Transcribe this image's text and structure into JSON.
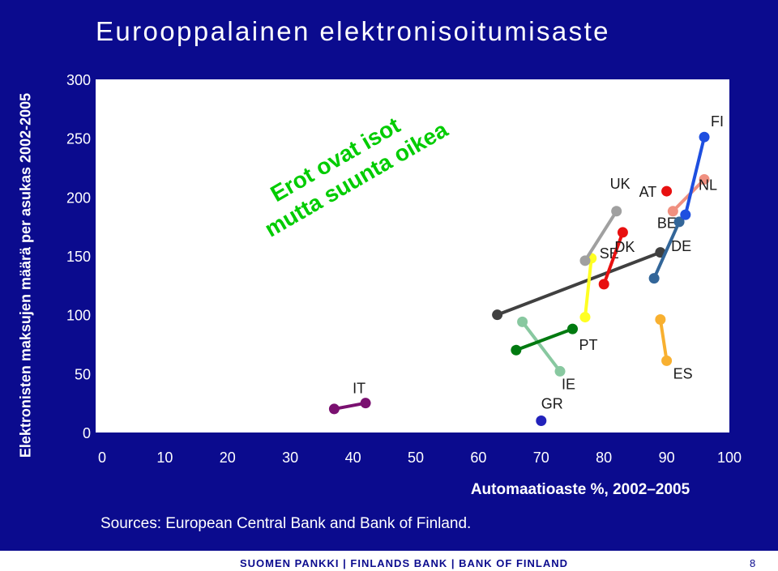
{
  "slide": {
    "footer_bank": "SUOMEN PANKKI | FINLANDS BANK | BANK OF FINLAND",
    "page_number": "8",
    "sources": "Sources: European Central Bank and Bank of Finland."
  },
  "chart_data": {
    "type": "scatter",
    "title": "Eurooppalainen elektronisoitumisaste",
    "xlabel": "Automaatioaste %, 2002–2005",
    "ylabel": "Elektronisten maksujen määrä per asukas 2002-2005",
    "xlim": [
      0,
      100
    ],
    "ylim": [
      0,
      300
    ],
    "x_ticks": [
      "0",
      "10",
      "20",
      "30",
      "40",
      "50",
      "60",
      "70",
      "80",
      "90",
      "100"
    ],
    "y_ticks": [
      "0",
      "50",
      "100",
      "150",
      "200",
      "250",
      "300"
    ],
    "annotation": [
      "Erot ovat isot",
      "mutta suunta oikea"
    ],
    "series": [
      {
        "name": "IT",
        "color": "#7a1070",
        "points": [
          [
            37,
            20
          ],
          [
            42,
            25
          ]
        ]
      },
      {
        "name": "GR",
        "color": "#2222bb",
        "points": [
          [
            70,
            10
          ]
        ]
      },
      {
        "name": "IE",
        "color": "#88c8a0",
        "points": [
          [
            67,
            94
          ],
          [
            73,
            52
          ]
        ]
      },
      {
        "name": "PT",
        "color": "#007a10",
        "points": [
          [
            66,
            70
          ],
          [
            75,
            88
          ]
        ]
      },
      {
        "name": "BE",
        "color": "#404040",
        "points": [
          [
            63,
            100
          ],
          [
            89,
            153
          ]
        ]
      },
      {
        "name": "SE",
        "color": "#ffff22",
        "points": [
          [
            77,
            98
          ],
          [
            78,
            148
          ]
        ]
      },
      {
        "name": "UK",
        "color": "#a0a0a0",
        "points": [
          [
            77,
            146
          ],
          [
            82,
            188
          ]
        ]
      },
      {
        "name": "DK",
        "color": "#e81010",
        "points": [
          [
            80,
            126
          ],
          [
            83,
            170
          ]
        ]
      },
      {
        "name": "AT",
        "color": "#e81010",
        "points": [
          [
            90,
            205
          ]
        ]
      },
      {
        "name": "ES",
        "color": "#f8b030",
        "points": [
          [
            89,
            96
          ],
          [
            90,
            61
          ]
        ]
      },
      {
        "name": "DE",
        "color": "#336699",
        "points": [
          [
            88,
            131
          ],
          [
            92,
            179
          ]
        ]
      },
      {
        "name": "NL",
        "color": "#f09080",
        "points": [
          [
            91,
            188
          ],
          [
            96,
            215
          ]
        ]
      },
      {
        "name": "FI",
        "color": "#1e4fe0",
        "points": [
          [
            93,
            185
          ],
          [
            96,
            251
          ]
        ]
      }
    ]
  }
}
